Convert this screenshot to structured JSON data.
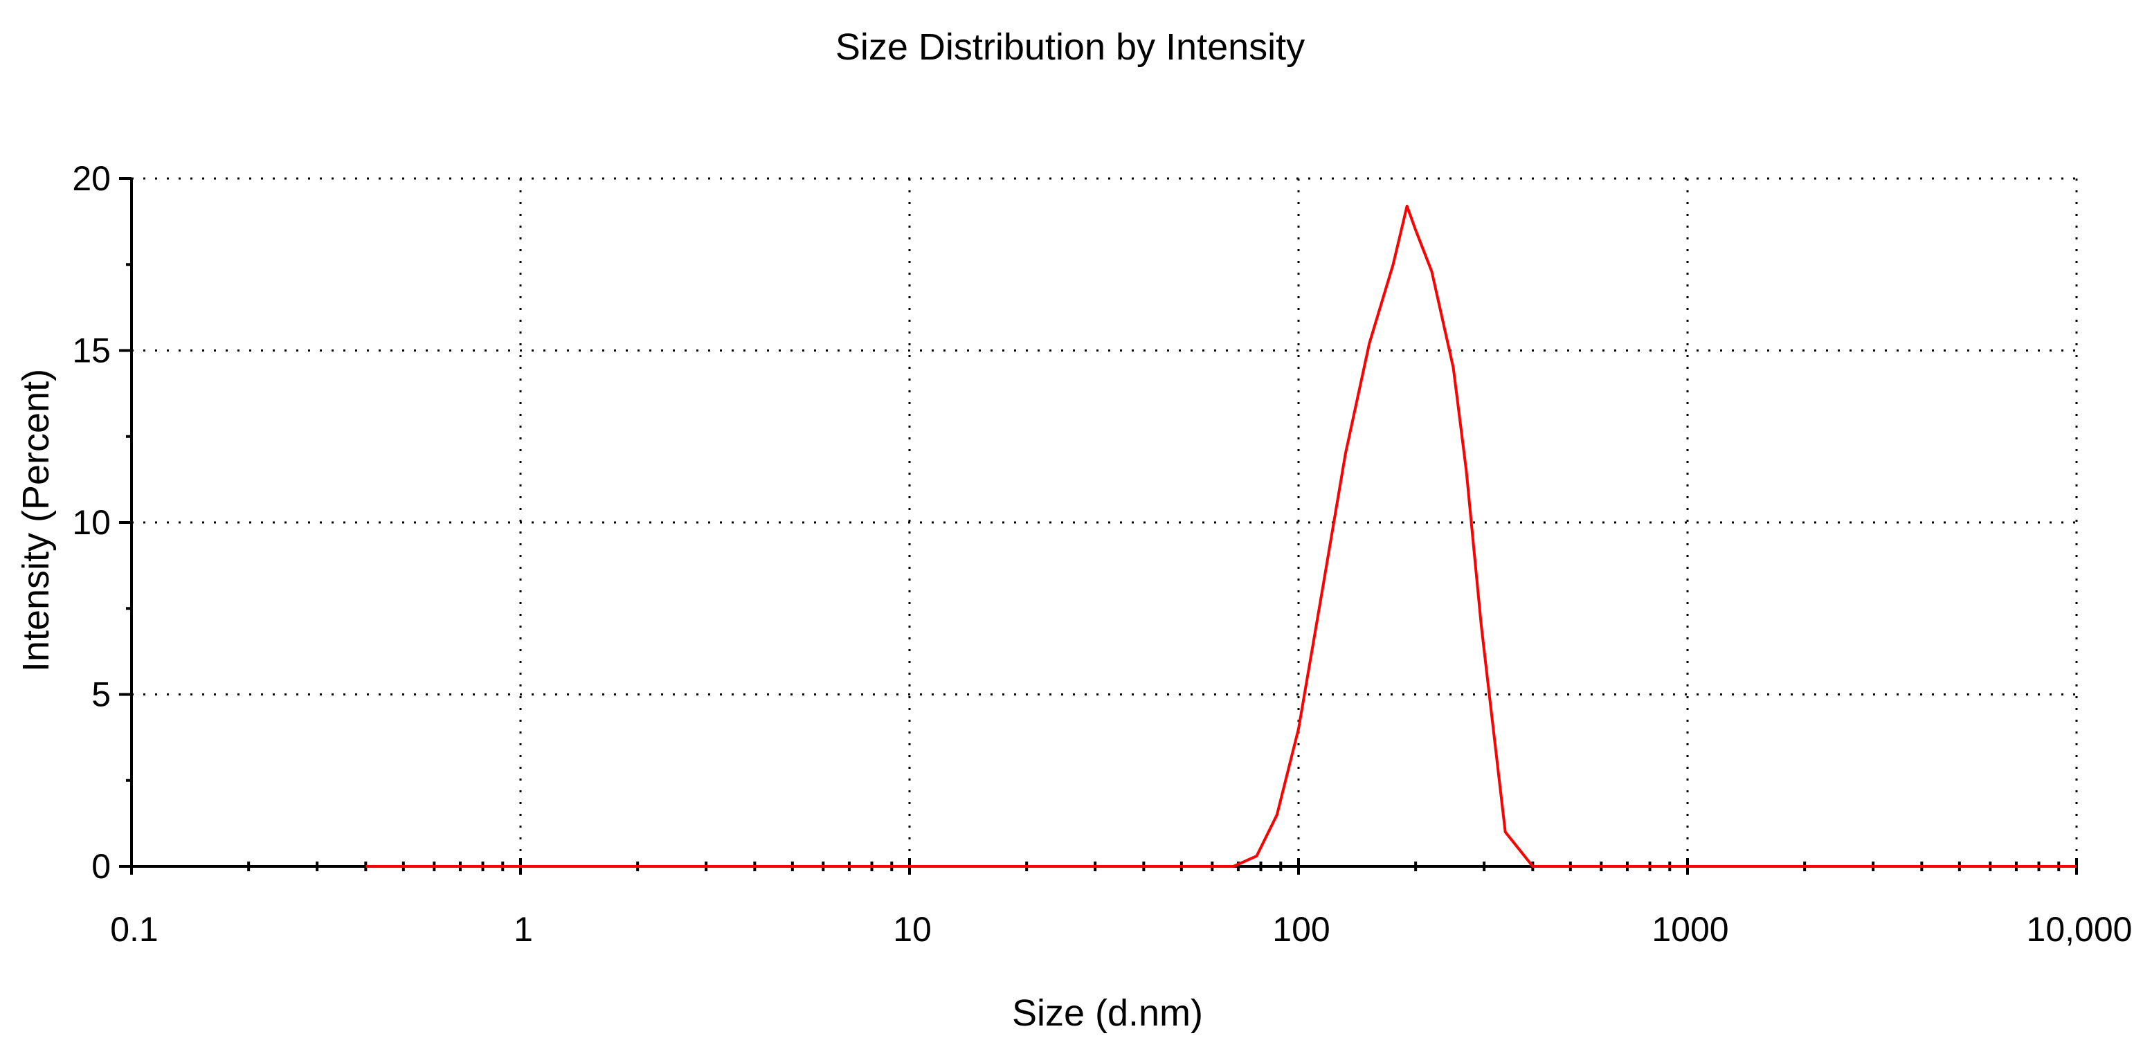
{
  "chart_data": {
    "type": "line",
    "title": "Size Distribution by Intensity",
    "xlabel": "Size (d.nm)",
    "ylabel": "Intensity (Percent)",
    "xscale": "log",
    "xlim": [
      0.1,
      10000
    ],
    "ylim": [
      0,
      20
    ],
    "xticks": [
      0.1,
      1,
      10,
      100,
      1000,
      10000
    ],
    "xtick_labels": [
      "0.1",
      "1",
      "10",
      "100",
      "1000",
      "10,000"
    ],
    "yticks": [
      0,
      5,
      10,
      15,
      20
    ],
    "ytick_labels": [
      "0",
      "5",
      "10",
      "15",
      "20"
    ],
    "grid": true,
    "grid_style": "dotted",
    "series": [
      {
        "color": "#ff0000",
        "x": [
          0.4,
          1,
          10,
          50,
          68,
          78,
          88,
          100,
          115,
          132,
          152,
          175,
          190,
          200,
          220,
          250,
          270,
          295,
          340,
          400,
          1000,
          10000
        ],
        "values": [
          0,
          0,
          0,
          0,
          0,
          0.3,
          1.5,
          4.0,
          8.0,
          12.0,
          15.2,
          17.5,
          19.2,
          18.5,
          17.3,
          14.5,
          11.5,
          7.0,
          1.0,
          0,
          0,
          0
        ]
      }
    ]
  }
}
